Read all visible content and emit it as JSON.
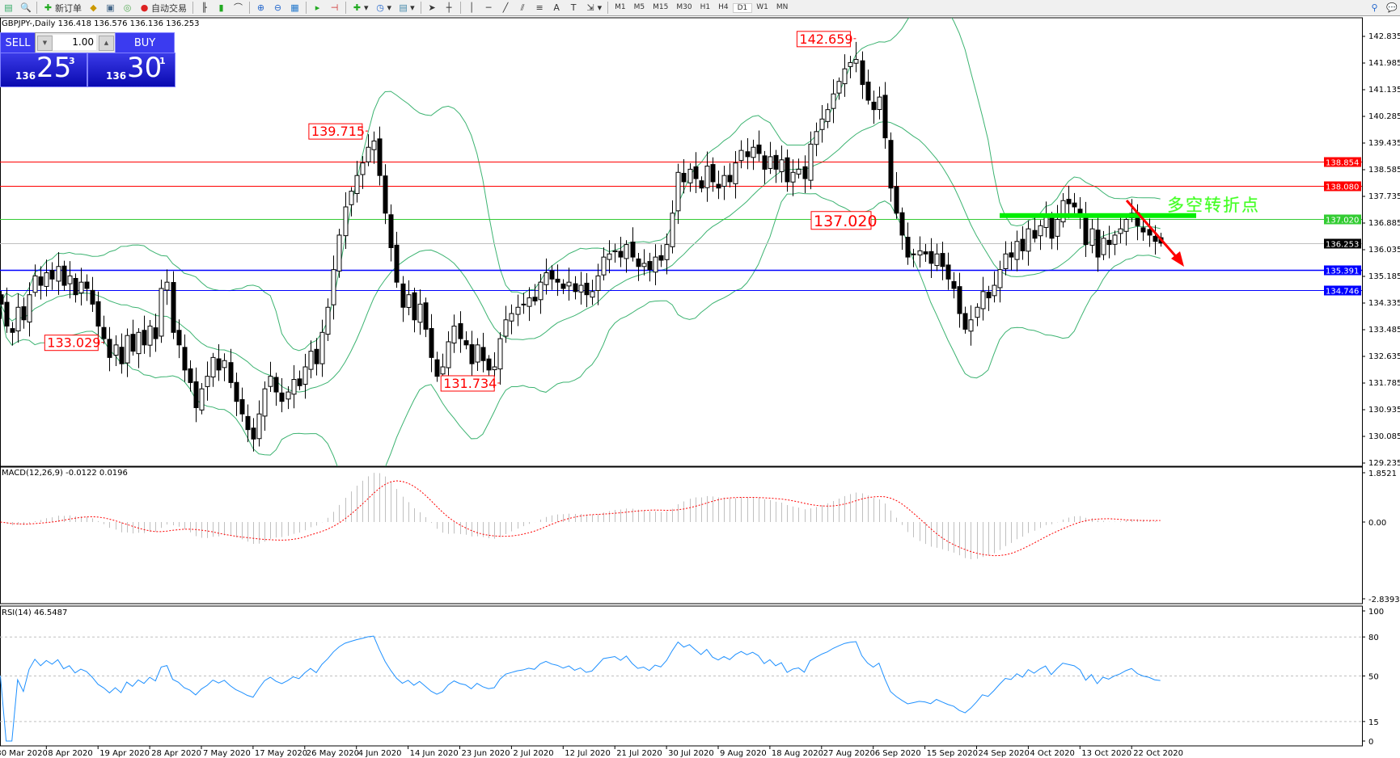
{
  "toolbar": {
    "new_order_label": "新订单",
    "auto_trading_label": "自动交易",
    "timeframes": [
      "M1",
      "M5",
      "M15",
      "M30",
      "H1",
      "H4",
      "D1",
      "W1",
      "MN"
    ],
    "active_timeframe": "D1",
    "icons": [
      "new-chart-icon",
      "zoom-icon",
      "new-order-icon",
      "market-watch-icon",
      "news-icon",
      "signal-icon",
      "auto-trading-icon",
      "bar-chart-icon",
      "candlestick-icon",
      "line-chart-icon",
      "zoom-in-icon",
      "zoom-out-icon",
      "tile-icon",
      "autoscroll-icon",
      "chart-shift-icon",
      "indicators-icon",
      "periods-icon",
      "templates-icon",
      "cursor-icon",
      "crosshair-icon",
      "vertical-line-icon",
      "horizontal-line-icon",
      "trendline-icon",
      "equidistant-channel-icon",
      "fibonacci-icon",
      "text-icon",
      "text-label-icon",
      "arrows-icon",
      "search-icon",
      "chat-icon"
    ]
  },
  "symbol_info": "GBPJPY-,Daily  136.418 136.576 136.136 136.253",
  "one_click": {
    "sell_label": "SELL",
    "buy_label": "BUY",
    "lots": "1.00",
    "sell_prefix": "136",
    "sell_big": "25",
    "sell_point": "3",
    "buy_prefix": "136",
    "buy_big": "30",
    "buy_point": "1"
  },
  "annotation_text": "多空转折点",
  "chart_data": {
    "type": "candlestick",
    "symbol": "GBPJPY-",
    "timeframe": "Daily",
    "ylim": [
      129.235,
      142.835
    ],
    "y_ticks": [
      "142.835",
      "141.985",
      "141.135",
      "140.285",
      "139.435",
      "138.585",
      "137.735",
      "136.885",
      "136.035",
      "135.185",
      "134.335",
      "133.485",
      "132.635",
      "131.785",
      "130.935",
      "130.085",
      "129.235"
    ],
    "x_ticks": [
      "30 Mar 2020",
      "8 Apr 2020",
      "19 Apr 2020",
      "28 Apr 2020",
      "7 May 2020",
      "17 May 2020",
      "26 May 2020",
      "4 Jun 2020",
      "14 Jun 2020",
      "23 Jun 2020",
      "2 Jul 2020",
      "12 Jul 2020",
      "21 Jul 2020",
      "30 Jul 2020",
      "9 Aug 2020",
      "18 Aug 2020",
      "27 Aug 2020",
      "6 Sep 2020",
      "15 Sep 2020",
      "24 Sep 2020",
      "4 Oct 2020",
      "13 Oct 2020",
      "22 Oct 2020"
    ],
    "closes": [
      134.3,
      133.6,
      133.4,
      134.2,
      133.8,
      134.6,
      135.2,
      134.9,
      135.3,
      135.1,
      135.5,
      134.9,
      135.2,
      134.6,
      135.0,
      134.8,
      134.3,
      133.6,
      133.2,
      132.6,
      133.0,
      132.4,
      133.3,
      132.8,
      133.4,
      133.0,
      133.6,
      133.2,
      134.8,
      135.0,
      133.4,
      133.0,
      132.2,
      131.8,
      131.0,
      131.6,
      132.0,
      132.6,
      132.2,
      132.5,
      131.8,
      131.2,
      130.8,
      130.3,
      130.0,
      130.8,
      131.6,
      132.0,
      131.5,
      131.2,
      131.5,
      131.9,
      131.7,
      132.3,
      132.8,
      132.4,
      133.4,
      134.2,
      135.4,
      136.5,
      137.4,
      137.9,
      138.4,
      138.8,
      139.3,
      139.5,
      138.4,
      137.2,
      136.1,
      135.0,
      134.2,
      134.6,
      133.8,
      134.3,
      133.5,
      132.6,
      132.0,
      132.3,
      133.1,
      133.6,
      133.2,
      133.0,
      132.4,
      133.0,
      132.5,
      132.2,
      132.3,
      133.2,
      133.8,
      134.0,
      134.2,
      134.3,
      134.5,
      134.4,
      135.0,
      135.3,
      135.1,
      135.0,
      134.8,
      135.0,
      134.7,
      134.9,
      134.6,
      134.7,
      135.2,
      135.8,
      135.9,
      136.0,
      135.8,
      136.2,
      135.8,
      135.5,
      135.6,
      135.4,
      135.8,
      135.7,
      136.2,
      137.2,
      138.5,
      138.2,
      138.6,
      138.3,
      138.0,
      138.7,
      138.2,
      138.0,
      138.4,
      138.2,
      138.8,
      139.2,
      139.0,
      139.3,
      139.1,
      138.6,
      139.0,
      138.6,
      138.9,
      138.2,
      138.5,
      138.6,
      138.3,
      139.4,
      139.8,
      140.2,
      140.5,
      141.0,
      141.4,
      141.8,
      142.0,
      142.1,
      141.3,
      140.8,
      140.5,
      140.9,
      139.6,
      138.0,
      137.2,
      136.5,
      135.8,
      135.9,
      136.0,
      135.9,
      135.6,
      135.9,
      135.5,
      135.1,
      134.8,
      134.0,
      133.5,
      133.8,
      134.2,
      134.7,
      134.5,
      134.9,
      135.4,
      135.9,
      135.8,
      136.3,
      136.0,
      136.7,
      136.4,
      136.8,
      137.1,
      136.4,
      137.0,
      137.6,
      137.5,
      137.4,
      137.1,
      136.2,
      136.7,
      135.8,
      136.4,
      136.2,
      136.5,
      136.7,
      137.0,
      137.2,
      136.8,
      136.6,
      136.5,
      136.3,
      136.25
    ],
    "last_bar": {
      "open": 136.418,
      "high": 136.576,
      "low": 136.136,
      "close": 136.253
    },
    "price_labels": [
      {
        "text": "142.659",
        "value": 142.659,
        "kind": "high"
      },
      {
        "text": "139.715",
        "value": 139.715,
        "kind": "high"
      },
      {
        "text": "137.020",
        "value": 137.02,
        "kind": "level"
      },
      {
        "text": "131.734",
        "value": 131.734,
        "kind": "low"
      },
      {
        "text": "133.029",
        "value": 133.029,
        "kind": "low"
      }
    ],
    "horizontal_lines": [
      {
        "text": "138.854",
        "value": 138.854,
        "color": "#ff0000"
      },
      {
        "text": "138.080",
        "value": 138.08,
        "color": "#ff0000"
      },
      {
        "text": "137.020",
        "value": 137.02,
        "color": "#33cc33"
      },
      {
        "text": "136.253",
        "value": 136.253,
        "color": "#c0c0c0",
        "label_bg": "#000000"
      },
      {
        "text": "135.391",
        "value": 135.391,
        "color": "#0000ff"
      },
      {
        "text": "134.746",
        "value": 134.746,
        "color": "#0000ff"
      }
    ],
    "indicators": {
      "bollinger": {
        "period": 20,
        "deviation": 2,
        "color": "#3cb371"
      },
      "macd": {
        "label": "MACD(12,26,9) -0.0122 0.0196",
        "fast": 12,
        "slow": 26,
        "signal": 9,
        "ylim": [
          -2.8393,
          1.8521
        ],
        "y_ticks": [
          "1.8521",
          "0.00",
          "-2.8393"
        ],
        "histogram_color": "#c0c0c0",
        "signal_color": "#ff0000"
      },
      "rsi": {
        "label": "RSI(14) 46.5487",
        "period": 14,
        "levels": [
          80,
          50,
          15
        ],
        "y_ticks": [
          "100",
          "80",
          "50",
          "15",
          "0"
        ],
        "color": "#1e90ff"
      }
    },
    "colors": {
      "bull_body": "#ffffff",
      "bear_body": "#000000",
      "resistance": "#ff0000",
      "support": "#0000ff",
      "pivot": "#00ee00",
      "arrow": "#ff0000"
    }
  }
}
